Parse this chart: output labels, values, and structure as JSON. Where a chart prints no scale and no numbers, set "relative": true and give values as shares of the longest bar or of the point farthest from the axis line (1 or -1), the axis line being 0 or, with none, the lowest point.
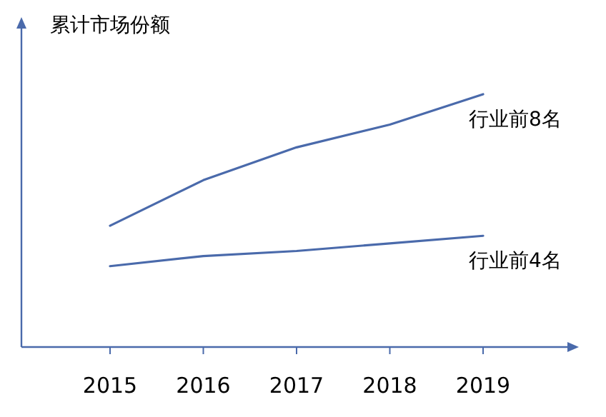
{
  "chart_data": {
    "type": "line",
    "title": "累计市场份额",
    "relative": true,
    "categories": [
      "2015",
      "2016",
      "2017",
      "2018",
      "2019"
    ],
    "series": [
      {
        "name": "行业前8名",
        "color": "#4a6aab",
        "values": [
          0.48,
          0.66,
          0.79,
          0.88,
          1
        ]
      },
      {
        "name": "行业前4名",
        "color": "#4a6aab",
        "values": [
          0.32,
          0.36,
          0.38,
          0.41,
          0.44
        ]
      }
    ]
  }
}
